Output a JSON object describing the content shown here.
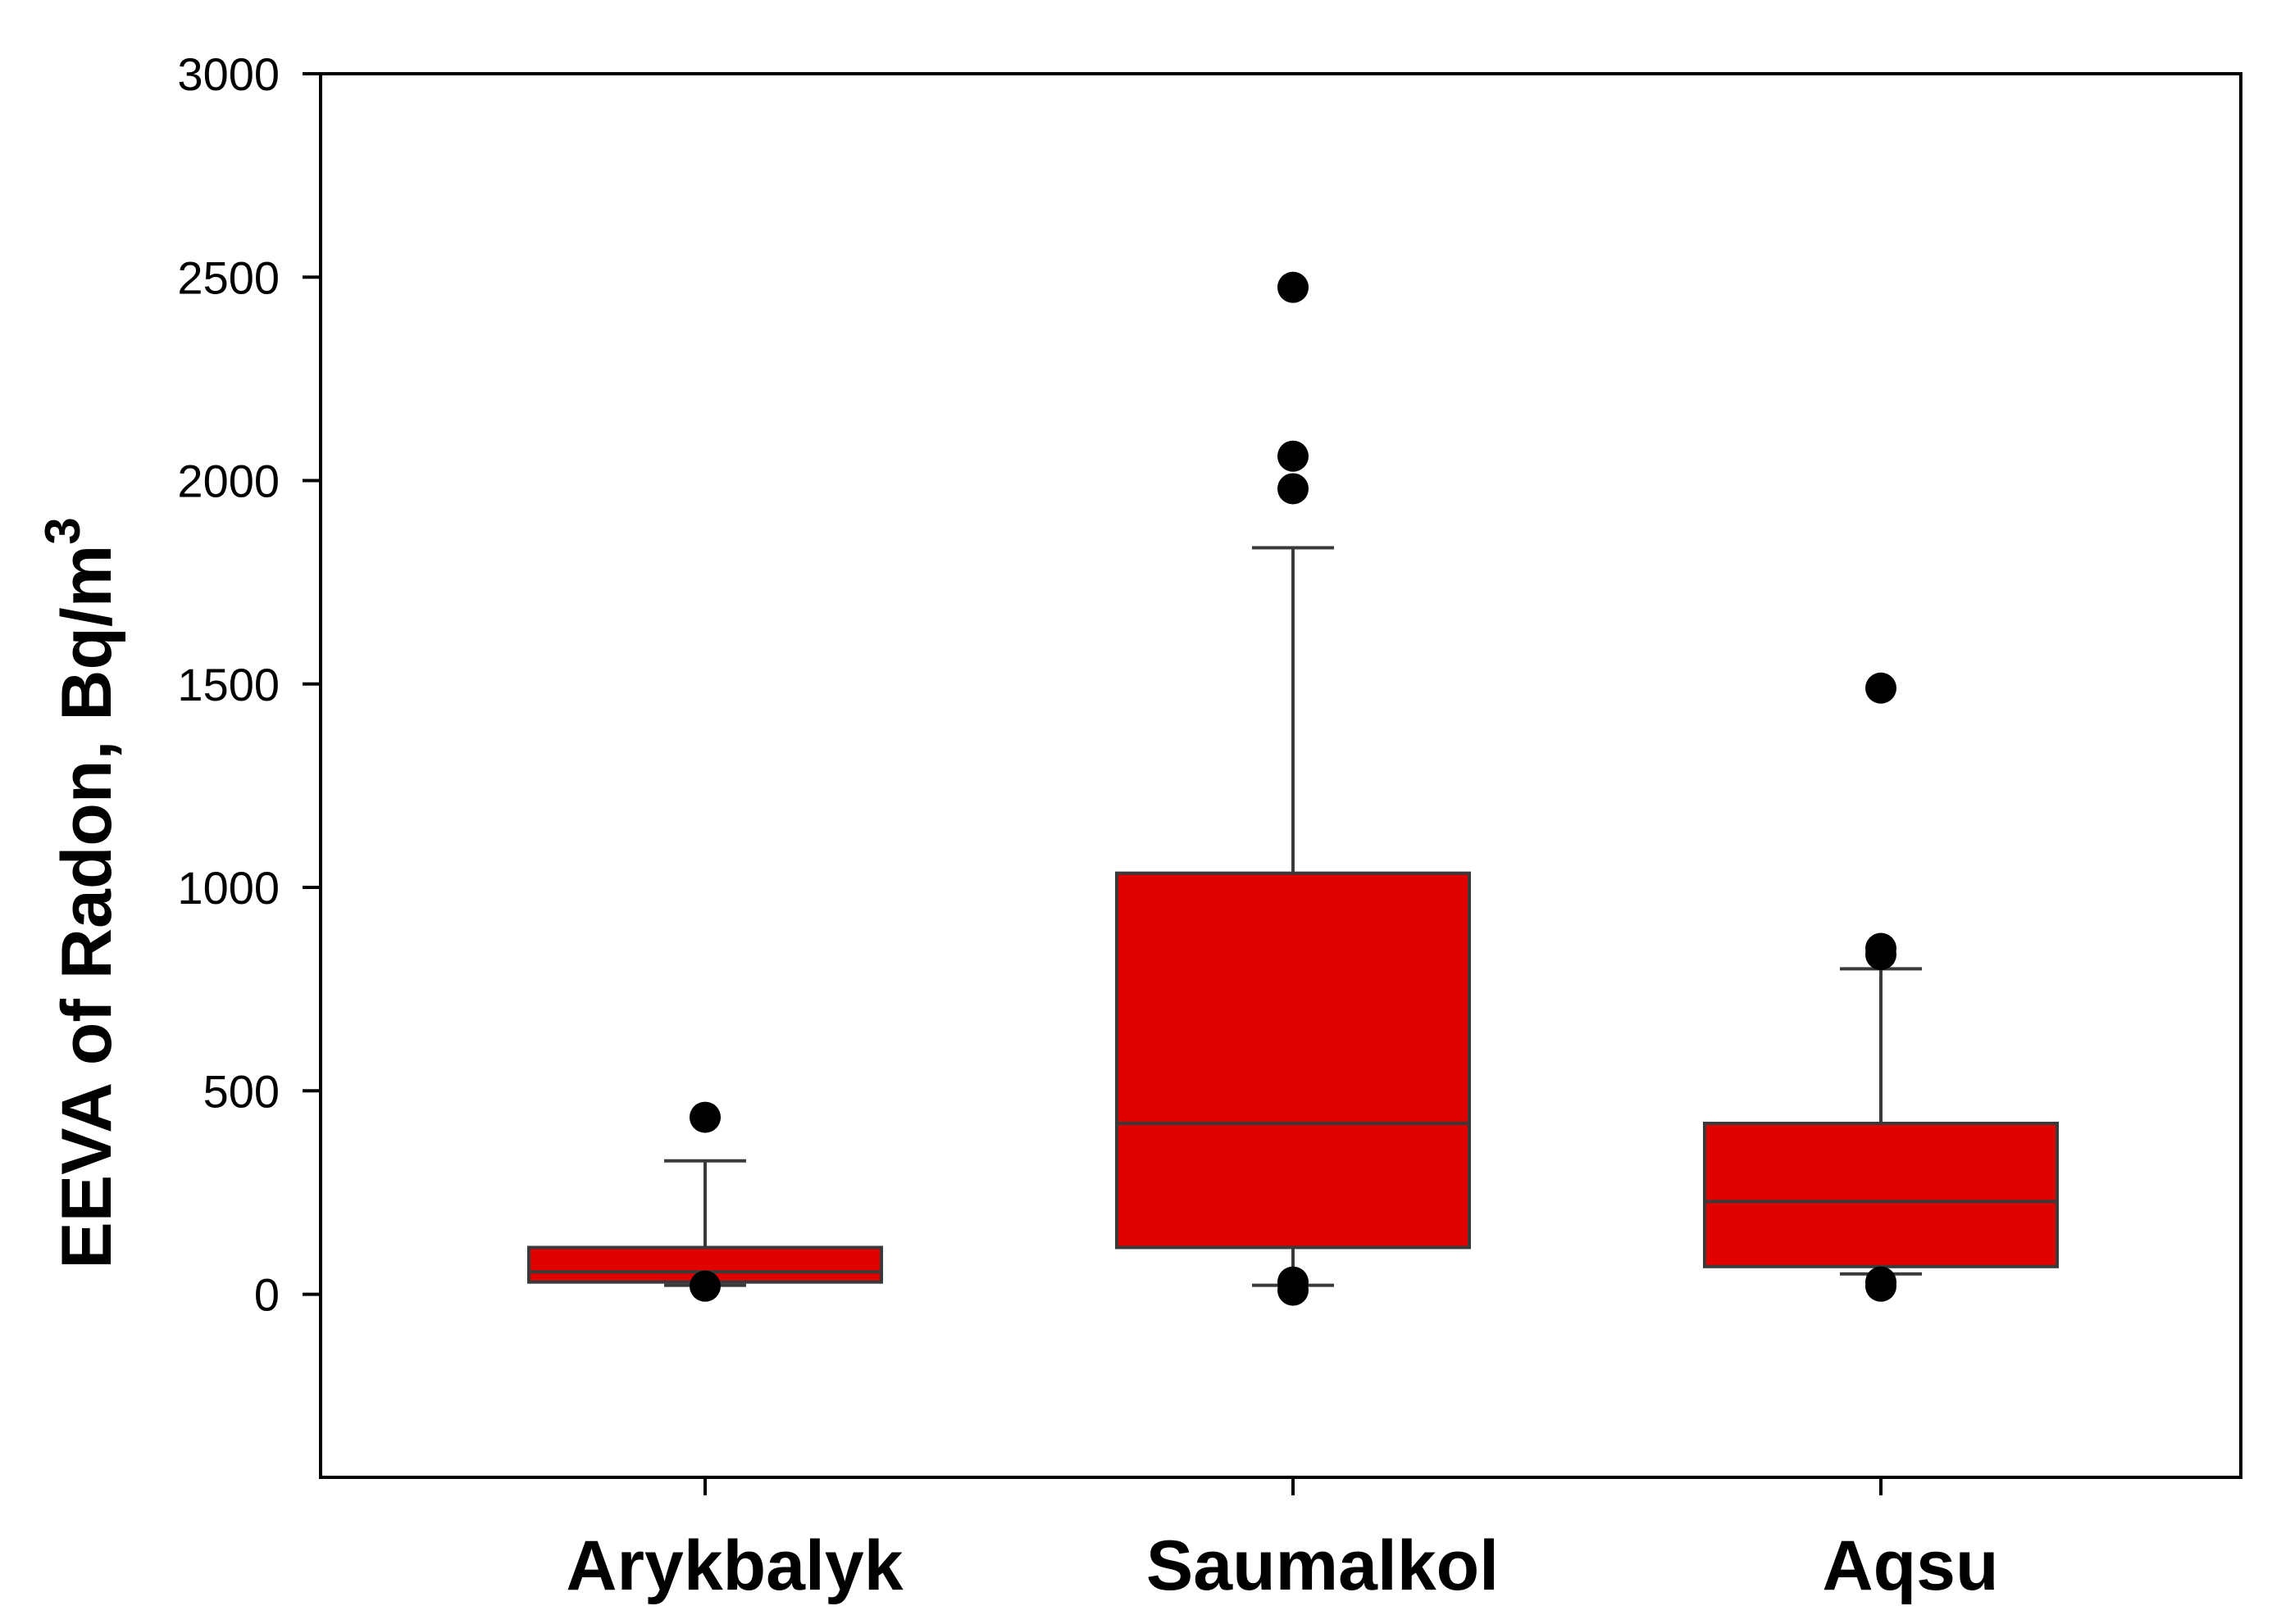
{
  "chart_data": {
    "type": "box",
    "categories": [
      "Arykbalyk",
      "Saumalkol",
      "Aqsu"
    ],
    "ylabel": "EEVA of Radon, Bq/m",
    "ylabel_superscript": "3",
    "ylim": [
      -450,
      3000
    ],
    "yticks": [
      0,
      500,
      1000,
      1500,
      2000,
      2500,
      3000
    ],
    "box_color": "#e00000",
    "outlier_color": "#000000",
    "boxes": [
      {
        "name": "Arykbalyk",
        "whisker_low": 22,
        "q1": 30,
        "median": 55,
        "q3": 115,
        "whisker_high": 328,
        "outliers": [
          435,
          20
        ]
      },
      {
        "name": "Saumalkol",
        "whisker_low": 22,
        "q1": 115,
        "median": 420,
        "q3": 1035,
        "whisker_high": 1835,
        "outliers": [
          2475,
          2060,
          1980,
          30,
          10
        ]
      },
      {
        "name": "Aqsu",
        "whisker_low": 50,
        "q1": 68,
        "median": 228,
        "q3": 420,
        "whisker_high": 800,
        "outliers": [
          1490,
          850,
          835,
          30,
          20
        ]
      }
    ]
  }
}
